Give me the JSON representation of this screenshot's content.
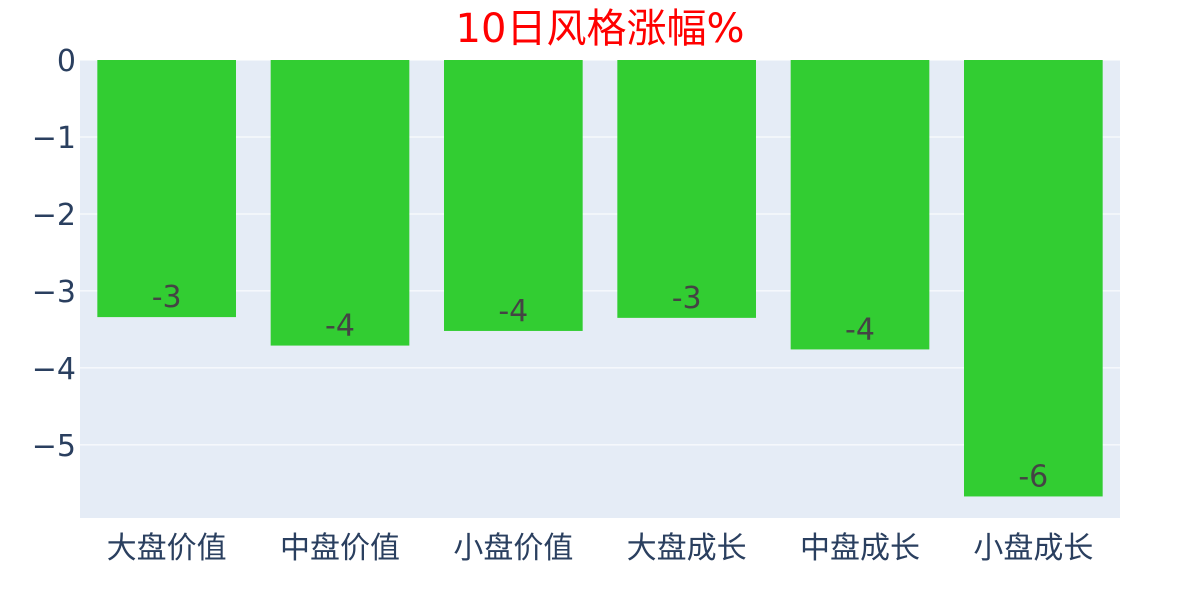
{
  "chart_data": {
    "type": "bar",
    "title": "10日风格涨幅%",
    "categories": [
      "大盘价值",
      "中盘价值",
      "小盘价值",
      "大盘成长",
      "中盘成长",
      "小盘成长"
    ],
    "values": [
      -3.34,
      -3.71,
      -3.52,
      -3.35,
      -3.76,
      -5.67
    ],
    "data_labels": [
      "-3",
      "-4",
      "-4",
      "-3",
      "-4",
      "-6"
    ],
    "y_ticks": [
      0,
      -1,
      -2,
      -3,
      -4,
      -5
    ],
    "y_tick_labels": [
      "0",
      "−1",
      "−2",
      "−3",
      "−4",
      "−5"
    ],
    "ylim": [
      -5.95,
      0
    ],
    "xlabel": "",
    "ylabel": "",
    "grid": true,
    "legend": "none"
  },
  "colors": {
    "title": "#ff0000",
    "bar": "#32cd32",
    "plot_background": "#e5ecf6",
    "grid": "#ffffff",
    "axis_text": "#2a3f5f"
  }
}
